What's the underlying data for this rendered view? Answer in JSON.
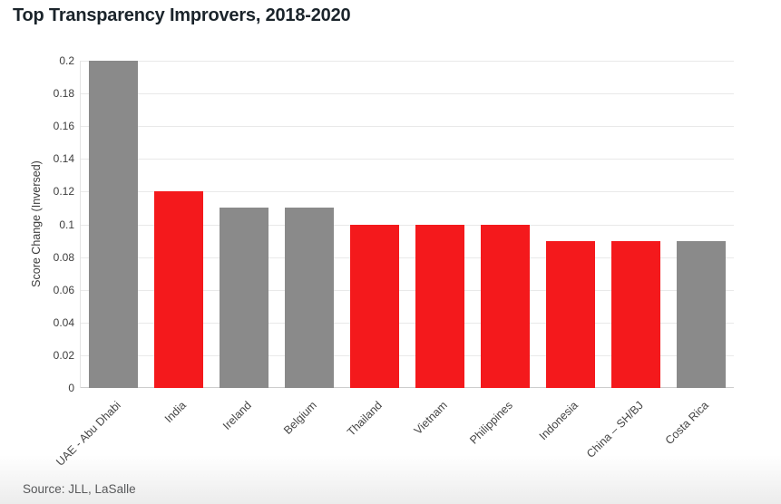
{
  "header": {
    "title": "Top Transparency Improvers, 2018-2020"
  },
  "footer": {
    "source": "Source: JLL, LaSalle"
  },
  "chart_data": {
    "type": "bar",
    "title": "Top Transparency Improvers, 2018-2020",
    "xlabel": "",
    "ylabel": "Score Change (Inversed)",
    "ylim": [
      0,
      0.2
    ],
    "yticks": [
      0,
      0.02,
      0.04,
      0.06,
      0.08,
      0.1,
      0.12,
      0.14,
      0.16,
      0.18,
      0.2
    ],
    "grid": true,
    "legend_position": "none",
    "categories": [
      "UAE - Abu Dhabi",
      "India",
      "Ireland",
      "Belgium",
      "Thailand",
      "Vietnam",
      "Philippines",
      "Indonesia",
      "China – SH/BJ",
      "Costa Rica"
    ],
    "values": [
      0.2,
      0.12,
      0.11,
      0.11,
      0.1,
      0.1,
      0.1,
      0.09,
      0.09,
      0.09
    ],
    "bar_color_roles": [
      "gray",
      "red",
      "gray",
      "gray",
      "red",
      "red",
      "red",
      "red",
      "red",
      "gray"
    ],
    "colors": {
      "red": "#f4191c",
      "gray": "#8a8a8a"
    },
    "source": "Source: JLL, LaSalle"
  }
}
